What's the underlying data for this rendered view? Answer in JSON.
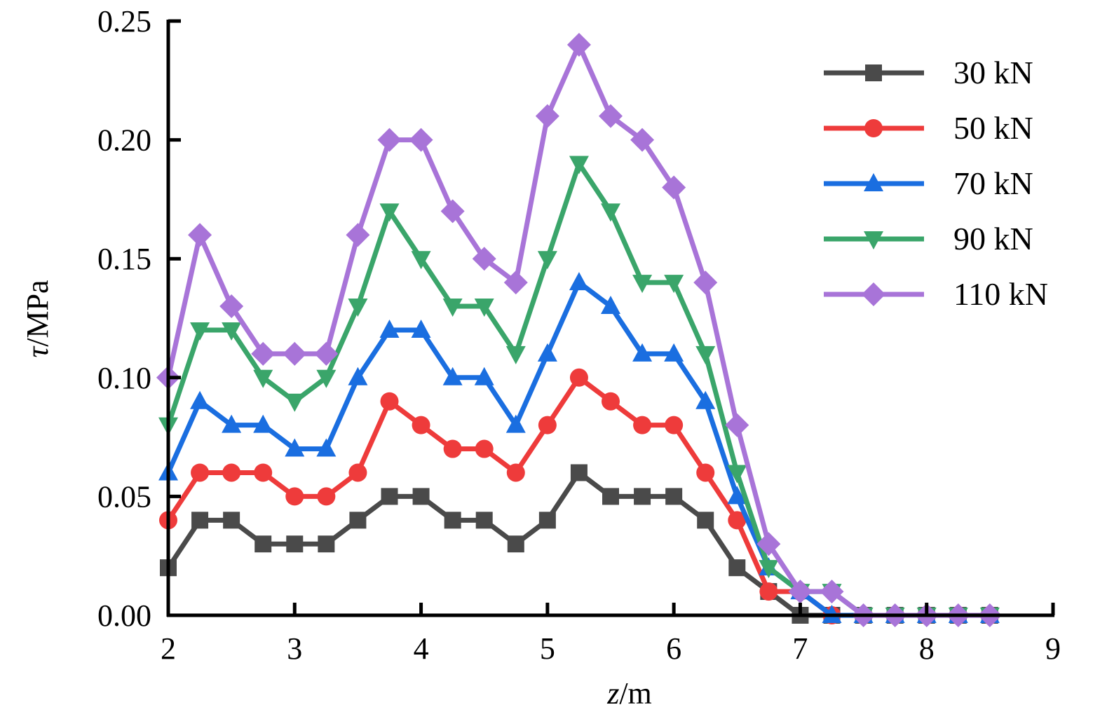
{
  "chart_data": {
    "type": "line",
    "xlabel_italic": "z",
    "xlabel_unit": "/m",
    "ylabel_italic": "τ",
    "ylabel_unit": "/MPa",
    "xlim": [
      2,
      9
    ],
    "ylim": [
      0,
      0.25
    ],
    "xticks": [
      "2",
      "3",
      "4",
      "5",
      "6",
      "7",
      "8",
      "9"
    ],
    "yticks": [
      "0.00",
      "0.05",
      "0.10",
      "0.15",
      "0.20",
      "0.25"
    ],
    "legend_position": "top-right",
    "grid": false,
    "x": [
      2,
      2.25,
      2.5,
      2.75,
      3,
      3.25,
      3.5,
      3.75,
      4,
      4.25,
      4.5,
      4.75,
      5,
      5.25,
      5.5,
      5.75,
      6,
      6.25,
      6.5,
      6.75,
      7,
      7.25,
      7.5,
      7.75,
      8,
      8.25,
      8.5
    ],
    "series": [
      {
        "name": "30 kN",
        "color": "#4a4a4a",
        "marker": "square",
        "values": [
          0.02,
          0.04,
          0.04,
          0.03,
          0.03,
          0.03,
          0.04,
          0.05,
          0.05,
          0.04,
          0.04,
          0.03,
          0.04,
          0.06,
          0.05,
          0.05,
          0.05,
          0.04,
          0.02,
          0.01,
          0,
          0,
          0,
          0,
          0,
          0,
          0
        ]
      },
      {
        "name": "50 kN",
        "color": "#ee3b3b",
        "marker": "circle",
        "values": [
          0.04,
          0.06,
          0.06,
          0.06,
          0.05,
          0.05,
          0.06,
          0.09,
          0.08,
          0.07,
          0.07,
          0.06,
          0.08,
          0.1,
          0.09,
          0.08,
          0.08,
          0.06,
          0.04,
          0.01,
          0.01,
          0,
          0,
          0,
          0,
          0,
          0
        ]
      },
      {
        "name": "70 kN",
        "color": "#1a6ee0",
        "marker": "triangle-up",
        "values": [
          0.06,
          0.09,
          0.08,
          0.08,
          0.07,
          0.07,
          0.1,
          0.12,
          0.12,
          0.1,
          0.1,
          0.08,
          0.11,
          0.14,
          0.13,
          0.11,
          0.11,
          0.09,
          0.05,
          0.02,
          0.01,
          0,
          0,
          0,
          0,
          0,
          0
        ]
      },
      {
        "name": "90 kN",
        "color": "#3aa56a",
        "marker": "triangle-down",
        "values": [
          0.08,
          0.12,
          0.12,
          0.1,
          0.09,
          0.1,
          0.13,
          0.17,
          0.15,
          0.13,
          0.13,
          0.11,
          0.15,
          0.19,
          0.17,
          0.14,
          0.14,
          0.11,
          0.06,
          0.02,
          0.01,
          0.01,
          0,
          0,
          0,
          0,
          0
        ]
      },
      {
        "name": "110 kN",
        "color": "#a874d8",
        "marker": "diamond",
        "values": [
          0.1,
          0.16,
          0.13,
          0.11,
          0.11,
          0.11,
          0.16,
          0.2,
          0.2,
          0.17,
          0.15,
          0.14,
          0.21,
          0.24,
          0.21,
          0.2,
          0.18,
          0.14,
          0.08,
          0.03,
          0.01,
          0.01,
          0,
          0,
          0,
          0,
          0
        ]
      }
    ]
  }
}
